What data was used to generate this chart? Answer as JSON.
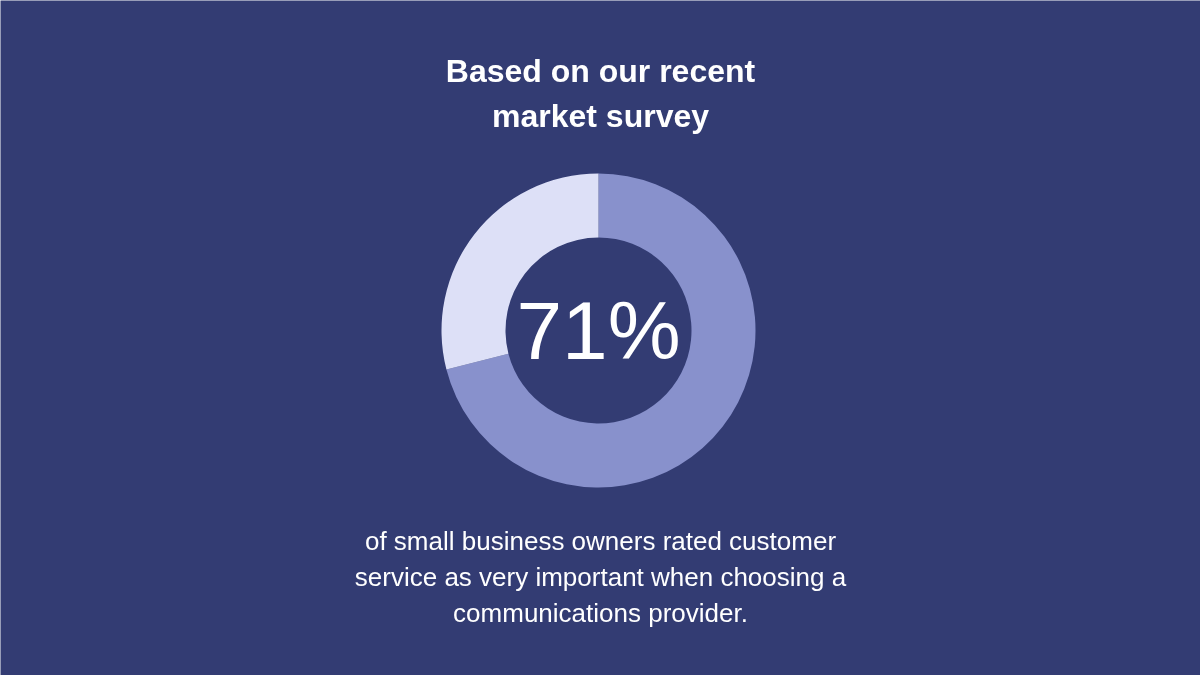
{
  "chart_data": {
    "type": "donut",
    "title": "Based on our recent market survey",
    "categories": [
      null,
      null
    ],
    "values": [
      71,
      29
    ],
    "colors": [
      "#8891cc",
      "#dde0f7"
    ],
    "annotations": [
      "71%",
      "of small business owners rated customer service as very important when choosing a communications provider."
    ]
  }
}
